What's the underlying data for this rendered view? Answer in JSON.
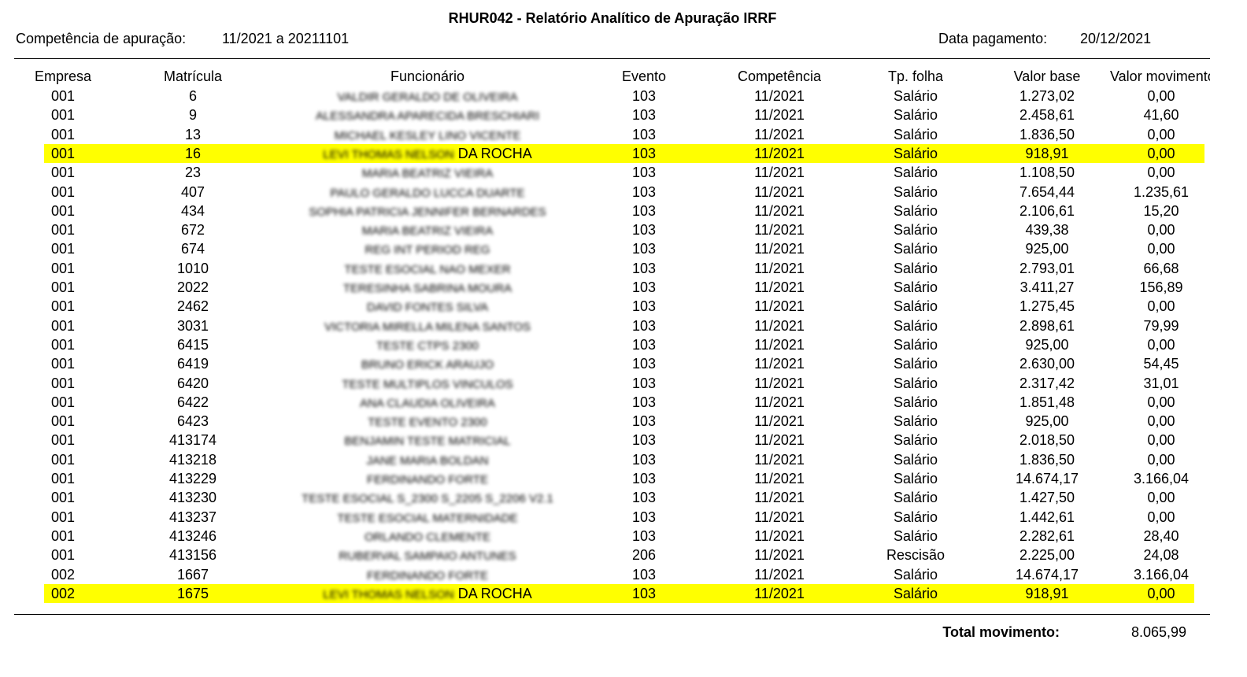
{
  "header": {
    "title": "RHUR042 - Relatório Analítico de Apuração IRRF",
    "competencia_label": "Competência de apuração:",
    "competencia_value": "11/2021 a 20211101",
    "pagamento_label": "Data pagamento:",
    "pagamento_value": "20/12/2021"
  },
  "table": {
    "columns": [
      "Empresa",
      "Matrícula",
      "Funcionário",
      "Evento",
      "Competência",
      "Tp. folha",
      "Valor base",
      "Valor movimento"
    ],
    "rows": [
      {
        "cells": [
          "001",
          "6",
          [
            "VALDIR GERALDO DE OLIVEIRA"
          ],
          "103",
          "11/2021",
          "Salário",
          "1.273,02",
          "0,00"
        ]
      },
      {
        "cells": [
          "001",
          "9",
          [
            "ALESSANDRA APARECIDA BRESCHIARI"
          ],
          "103",
          "11/2021",
          "Salário",
          "2.458,61",
          "41,60"
        ]
      },
      {
        "cells": [
          "001",
          "13",
          [
            "MICHAEL KESLEY LINO VICENTE"
          ],
          "103",
          "11/2021",
          "Salário",
          "1.836,50",
          "0,00"
        ]
      },
      {
        "cells": [
          "001",
          "16",
          [
            "LEVI THOMAS NELSON",
            "DA ROCHA"
          ],
          "103",
          "11/2021",
          "Salário",
          "918,91",
          "0,00"
        ],
        "highlight": true
      },
      {
        "cells": [
          "001",
          "23",
          [
            "MARIA BEATRIZ VIEIRA"
          ],
          "103",
          "11/2021",
          "Salário",
          "1.108,50",
          "0,00"
        ]
      },
      {
        "cells": [
          "001",
          "407",
          [
            "PAULO GERALDO LUCCA DUARTE"
          ],
          "103",
          "11/2021",
          "Salário",
          "7.654,44",
          "1.235,61"
        ]
      },
      {
        "cells": [
          "001",
          "434",
          [
            "SOPHIA PATRICIA JENNIFER BERNARDES"
          ],
          "103",
          "11/2021",
          "Salário",
          "2.106,61",
          "15,20"
        ]
      },
      {
        "cells": [
          "001",
          "672",
          [
            "MARIA BEATRIZ VIEIRA"
          ],
          "103",
          "11/2021",
          "Salário",
          "439,38",
          "0,00"
        ]
      },
      {
        "cells": [
          "001",
          "674",
          [
            "REG INT PERIOD REG"
          ],
          "103",
          "11/2021",
          "Salário",
          "925,00",
          "0,00"
        ]
      },
      {
        "cells": [
          "001",
          "1010",
          [
            "TESTE ESOCIAL NAO MEXER"
          ],
          "103",
          "11/2021",
          "Salário",
          "2.793,01",
          "66,68"
        ]
      },
      {
        "cells": [
          "001",
          "2022",
          [
            "TERESINHA SABRINA MOURA"
          ],
          "103",
          "11/2021",
          "Salário",
          "3.411,27",
          "156,89"
        ]
      },
      {
        "cells": [
          "001",
          "2462",
          [
            "DAVID FONTES SILVA"
          ],
          "103",
          "11/2021",
          "Salário",
          "1.275,45",
          "0,00"
        ]
      },
      {
        "cells": [
          "001",
          "3031",
          [
            "VICTORIA MIRELLA MILENA SANTOS"
          ],
          "103",
          "11/2021",
          "Salário",
          "2.898,61",
          "79,99"
        ]
      },
      {
        "cells": [
          "001",
          "6415",
          [
            "TESTE CTPS 2300"
          ],
          "103",
          "11/2021",
          "Salário",
          "925,00",
          "0,00"
        ]
      },
      {
        "cells": [
          "001",
          "6419",
          [
            "BRUNO ERICK ARAUJO"
          ],
          "103",
          "11/2021",
          "Salário",
          "2.630,00",
          "54,45"
        ]
      },
      {
        "cells": [
          "001",
          "6420",
          [
            "TESTE MULTIPLOS VINCULOS"
          ],
          "103",
          "11/2021",
          "Salário",
          "2.317,42",
          "31,01"
        ]
      },
      {
        "cells": [
          "001",
          "6422",
          [
            "ANA CLAUDIA OLIVEIRA"
          ],
          "103",
          "11/2021",
          "Salário",
          "1.851,48",
          "0,00"
        ]
      },
      {
        "cells": [
          "001",
          "6423",
          [
            "TESTE EVENTO 2300"
          ],
          "103",
          "11/2021",
          "Salário",
          "925,00",
          "0,00"
        ]
      },
      {
        "cells": [
          "001",
          "413174",
          [
            "BENJAMIN TESTE MATRICIAL"
          ],
          "103",
          "11/2021",
          "Salário",
          "2.018,50",
          "0,00"
        ]
      },
      {
        "cells": [
          "001",
          "413218",
          [
            "JANE MARIA BOLDAN"
          ],
          "103",
          "11/2021",
          "Salário",
          "1.836,50",
          "0,00"
        ]
      },
      {
        "cells": [
          "001",
          "413229",
          [
            "FERDINANDO FORTE"
          ],
          "103",
          "11/2021",
          "Salário",
          "14.674,17",
          "3.166,04"
        ]
      },
      {
        "cells": [
          "001",
          "413230",
          [
            "TESTE ESOCIAL S_2300 S_2205 S_2206 V2.1"
          ],
          "103",
          "11/2021",
          "Salário",
          "1.427,50",
          "0,00"
        ]
      },
      {
        "cells": [
          "001",
          "413237",
          [
            "TESTE ESOCIAL MATERNIDADE"
          ],
          "103",
          "11/2021",
          "Salário",
          "1.442,61",
          "0,00"
        ]
      },
      {
        "cells": [
          "001",
          "413246",
          [
            "ORLANDO CLEMENTE"
          ],
          "103",
          "11/2021",
          "Salário",
          "2.282,61",
          "28,40"
        ]
      },
      {
        "cells": [
          "001",
          "413156",
          [
            "RUBERVAL SAMPAIO ANTUNES"
          ],
          "206",
          "11/2021",
          "Rescisão",
          "2.225,00",
          "24,08"
        ]
      },
      {
        "cells": [
          "002",
          "1667",
          [
            "FERDINANDO FORTE"
          ],
          "103",
          "11/2021",
          "Salário",
          "14.674,17",
          "3.166,04"
        ]
      },
      {
        "cells": [
          "002",
          "1675",
          [
            "LEVI THOMAS NELSON",
            "DA ROCHA"
          ],
          "103",
          "11/2021",
          "Salário",
          "918,91",
          "0,00"
        ],
        "highlight": true
      }
    ]
  },
  "footer": {
    "total_label": "Total movimento:",
    "total_value": "8.065,99"
  }
}
